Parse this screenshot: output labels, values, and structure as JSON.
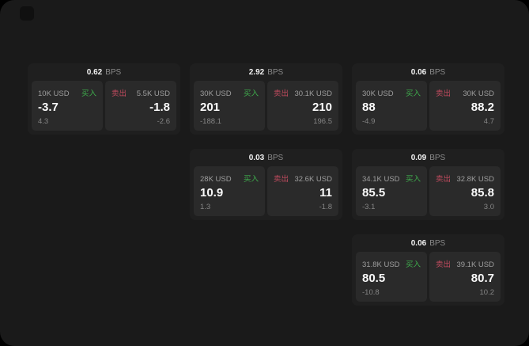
{
  "labels": {
    "bps_unit": "BPS",
    "buy": "买入",
    "sell": "卖出"
  },
  "colors": {
    "page_bg": "#1a1a1a",
    "card_bg": "#1f1f1f",
    "panel_bg": "#2a2a2a",
    "buy_green": "#3fae4d",
    "sell_red": "#c04b5e"
  },
  "cards": [
    {
      "bps": "0.62",
      "buy": {
        "amount": "10K USD",
        "price": "-3.7",
        "delta": "4.3"
      },
      "sell": {
        "amount": "5.5K USD",
        "price": "-1.8",
        "delta": "-2.6"
      }
    },
    {
      "bps": "2.92",
      "buy": {
        "amount": "30K USD",
        "price": "201",
        "delta": "-188.1"
      },
      "sell": {
        "amount": "30.1K USD",
        "price": "210",
        "delta": "196.5"
      }
    },
    {
      "bps": "0.06",
      "buy": {
        "amount": "30K USD",
        "price": "88",
        "delta": "-4.9"
      },
      "sell": {
        "amount": "30K USD",
        "price": "88.2",
        "delta": "4.7"
      }
    },
    {
      "bps": "0.03",
      "buy": {
        "amount": "28K USD",
        "price": "10.9",
        "delta": "1.3"
      },
      "sell": {
        "amount": "32.6K USD",
        "price": "11",
        "delta": "-1.8"
      }
    },
    {
      "bps": "0.09",
      "buy": {
        "amount": "34.1K USD",
        "price": "85.5",
        "delta": "-3.1"
      },
      "sell": {
        "amount": "32.8K USD",
        "price": "85.8",
        "delta": "3.0"
      }
    },
    {
      "bps": "0.06",
      "buy": {
        "amount": "31.8K USD",
        "price": "80.5",
        "delta": "-10.8"
      },
      "sell": {
        "amount": "39.1K USD",
        "price": "80.7",
        "delta": "10.2"
      }
    }
  ]
}
